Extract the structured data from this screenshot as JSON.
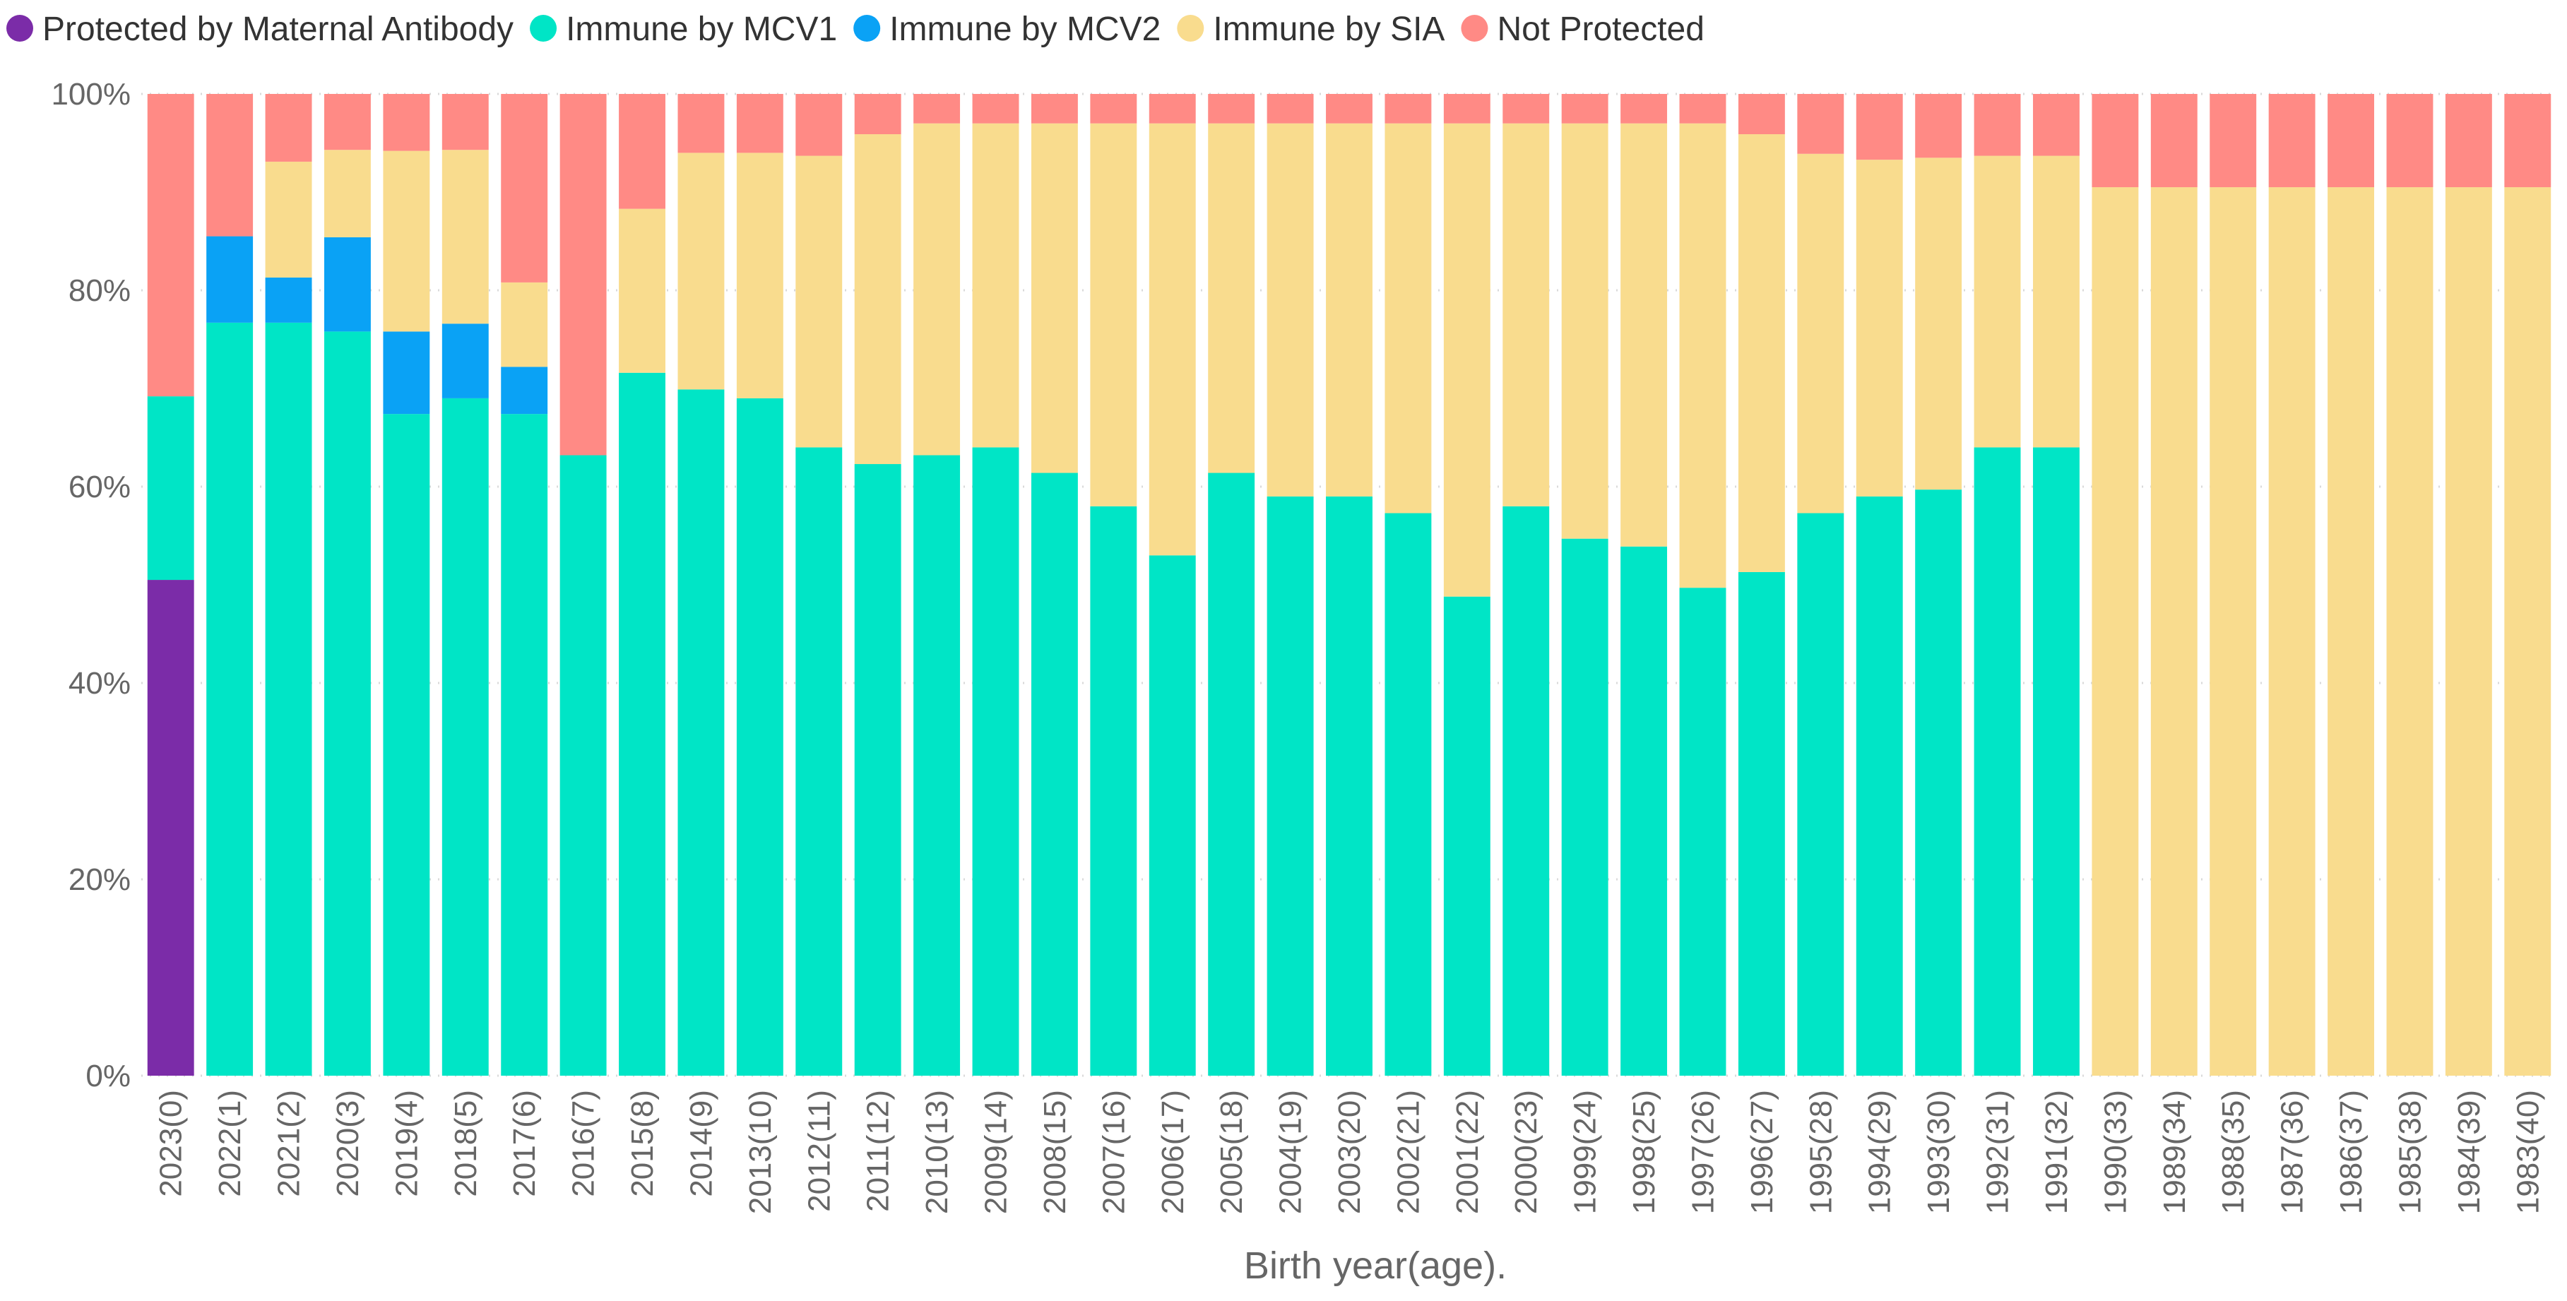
{
  "chart_data": {
    "type": "bar",
    "stacked": true,
    "title": "",
    "xlabel": "Birth year(age).",
    "ylabel": "",
    "ylim": [
      0,
      100
    ],
    "y_ticks": [
      "0%",
      "20%",
      "40%",
      "60%",
      "80%",
      "100%"
    ],
    "legend_position": "top-left",
    "categories": [
      "2023(0)",
      "2022(1)",
      "2021(2)",
      "2020(3)",
      "2019(4)",
      "2018(5)",
      "2017(6)",
      "2016(7)",
      "2015(8)",
      "2014(9)",
      "2013(10)",
      "2012(11)",
      "2011(12)",
      "2010(13)",
      "2009(14)",
      "2008(15)",
      "2007(16)",
      "2006(17)",
      "2005(18)",
      "2004(19)",
      "2003(20)",
      "2002(21)",
      "2001(22)",
      "2000(23)",
      "1999(24)",
      "1998(25)",
      "1997(26)",
      "1996(27)",
      "1995(28)",
      "1994(29)",
      "1993(30)",
      "1992(31)",
      "1991(32)",
      "1990(33)",
      "1989(34)",
      "1988(35)",
      "1987(36)",
      "1986(37)",
      "1985(38)",
      "1984(39)",
      "1983(40)"
    ],
    "series": [
      {
        "name": "Protected by Maternal Antibody",
        "color": "#7B2CA8",
        "values": [
          50.5,
          0,
          0,
          0,
          0,
          0,
          0,
          0,
          0,
          0,
          0,
          0,
          0,
          0,
          0,
          0,
          0,
          0,
          0,
          0,
          0,
          0,
          0,
          0,
          0,
          0,
          0,
          0,
          0,
          0,
          0,
          0,
          0,
          0,
          0,
          0,
          0,
          0,
          0,
          0,
          0
        ]
      },
      {
        "name": "Immune by MCV1",
        "color": "#00E5C6",
        "values": [
          18.7,
          76.7,
          76.7,
          75.8,
          67.4,
          69.0,
          67.4,
          63.2,
          71.6,
          69.9,
          69.0,
          64.0,
          62.3,
          63.2,
          64.0,
          61.4,
          58.0,
          53.0,
          61.4,
          59.0,
          59.0,
          57.3,
          48.8,
          58.0,
          54.7,
          53.9,
          49.7,
          51.3,
          57.3,
          59.0,
          59.7,
          64.0,
          64.0,
          0,
          0,
          0,
          0,
          0,
          0,
          0,
          0
        ]
      },
      {
        "name": "Immune by MCV2",
        "color": "#0AA2F5",
        "values": [
          0,
          8.8,
          4.6,
          9.6,
          8.4,
          7.6,
          4.8,
          0,
          0,
          0,
          0,
          0,
          0,
          0,
          0,
          0,
          0,
          0,
          0,
          0,
          0,
          0,
          0,
          0,
          0,
          0,
          0,
          0,
          0,
          0,
          0,
          0,
          0,
          0,
          0,
          0,
          0,
          0,
          0,
          0,
          0
        ]
      },
      {
        "name": "Immune by SIA",
        "color": "#F9DC8E",
        "values": [
          0,
          0,
          11.8,
          8.9,
          18.4,
          17.7,
          8.6,
          0,
          16.7,
          24.1,
          25.0,
          29.7,
          33.6,
          33.8,
          33.0,
          35.6,
          39.0,
          44.0,
          35.6,
          38.0,
          38.0,
          39.7,
          48.2,
          39.0,
          42.3,
          43.1,
          47.3,
          44.6,
          36.6,
          34.3,
          33.8,
          29.7,
          29.7,
          90.5,
          90.5,
          90.5,
          90.5,
          90.5,
          90.5,
          90.5,
          90.5
        ]
      },
      {
        "name": "Not Protected",
        "color": "#FF8A85",
        "values": [
          30.8,
          14.5,
          6.9,
          5.7,
          5.8,
          5.7,
          19.2,
          36.8,
          11.7,
          6.0,
          6.0,
          6.3,
          4.1,
          3.0,
          3.0,
          3.0,
          3.0,
          3.0,
          3.0,
          3.0,
          3.0,
          3.0,
          3.0,
          3.0,
          3.0,
          3.0,
          3.0,
          4.1,
          6.1,
          6.7,
          6.5,
          6.3,
          6.3,
          9.5,
          9.5,
          9.5,
          9.5,
          9.5,
          9.5,
          9.5,
          9.5
        ]
      }
    ]
  }
}
